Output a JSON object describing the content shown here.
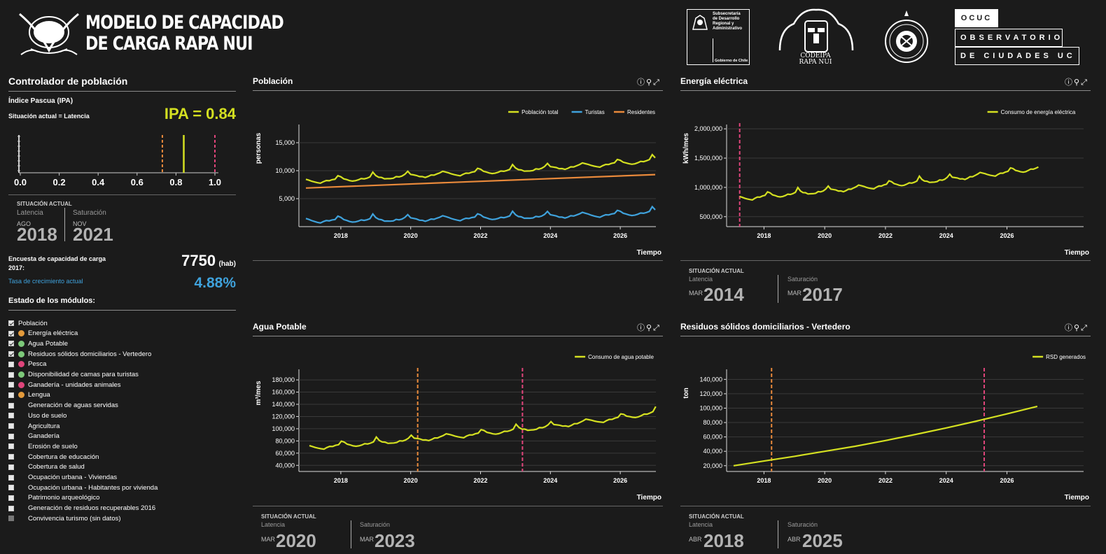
{
  "header": {
    "title_line1": "MODELO DE CAPACIDAD",
    "title_line2": "DE CARGA RAPA NUI",
    "logos": {
      "subsecretaria": [
        "Subsecretaría",
        "de Desarrollo",
        "Regional y",
        "Administrativo"
      ],
      "gobierno": "Gobierno de Chile",
      "codeipa": [
        "CODEIPA",
        "RAPA NUI"
      ],
      "ocuc": [
        "OCUC",
        "OBSERVATORIO",
        "DE CIUDADES UC"
      ]
    }
  },
  "controller": {
    "title": "Controlador de población",
    "ipa_title": "Índice Pascua (IPA)",
    "situacion": "Situación actual = Latencia",
    "ipa_value": "IPA = 0.84",
    "gauge": {
      "ticks": [
        "0.0",
        "0.2",
        "0.4",
        "0.6",
        "0.8",
        "1.0"
      ],
      "latencia": 0.73,
      "current": 0.84,
      "saturacion": 1.0
    },
    "status_label": "SITUACIÓN ACTUAL",
    "latencia_label": "Latencia",
    "latencia_month": "AGO",
    "latencia_year": "2018",
    "saturacion_label": "Saturación",
    "saturacion_month": "NOV",
    "saturacion_year": "2021",
    "encuesta_label": "Encuesta de capacidad de carga 2017:",
    "encuesta_value": "7750",
    "encuesta_unit": "(hab)",
    "tasa_label": "Tasa de crecimiento actual",
    "tasa_value": "4.88%",
    "modules_title": "Estado de los módulos:",
    "modules": [
      {
        "label": "Población",
        "checked": true,
        "dot": null,
        "indent": false
      },
      {
        "label": "Energía eléctrica",
        "checked": true,
        "dot": "#e39a3b",
        "indent": true
      },
      {
        "label": "Agua Potable",
        "checked": true,
        "dot": "#7dc97a",
        "indent": true
      },
      {
        "label": "Residuos sólidos domiciliarios - Vertedero",
        "checked": true,
        "dot": "#7dc97a",
        "indent": true
      },
      {
        "label": "Pesca",
        "checked": false,
        "dot": "#e0457b",
        "indent": true
      },
      {
        "label": "Disponibilidad de camas para turistas",
        "checked": false,
        "dot": "#7dc97a",
        "indent": false
      },
      {
        "label": "Ganadería - unidades animales",
        "checked": false,
        "dot": "#e0457b",
        "indent": true
      },
      {
        "label": "Lengua",
        "checked": false,
        "dot": "#e39a3b",
        "indent": true
      },
      {
        "label": "Generación de aguas servidas",
        "checked": false,
        "dot": null,
        "indent": true
      },
      {
        "label": "Uso de suelo",
        "checked": false,
        "dot": null,
        "indent": true
      },
      {
        "label": "Agricultura",
        "checked": false,
        "dot": null,
        "indent": true
      },
      {
        "label": "Ganadería",
        "checked": false,
        "dot": null,
        "indent": true
      },
      {
        "label": "Erosión de suelo",
        "checked": false,
        "dot": null,
        "indent": true
      },
      {
        "label": "Cobertura de educación",
        "checked": false,
        "dot": null,
        "indent": true
      },
      {
        "label": "Cobertura de salud",
        "checked": false,
        "dot": null,
        "indent": true
      },
      {
        "label": "Ocupación urbana - Viviendas",
        "checked": false,
        "dot": null,
        "indent": true
      },
      {
        "label": "Ocupación urbana - Habitantes por vivienda",
        "checked": false,
        "dot": null,
        "indent": true
      },
      {
        "label": "Patrimonio arqueológico",
        "checked": false,
        "dot": null,
        "indent": true
      },
      {
        "label": "Generación de residuos recuperables 2016",
        "checked": false,
        "dot": null,
        "indent": true
      },
      {
        "label": "Convivencia turismo (sin datos)",
        "checked": false,
        "dot": null,
        "indent": true,
        "disabled": true
      }
    ]
  },
  "colors": {
    "yellow": "#d4e021",
    "blue": "#3fa2dc",
    "orange": "#e8893b",
    "pink": "#e0457b",
    "bg": "#1b1b1b"
  },
  "panels": {
    "poblacion": {
      "title": "Población",
      "xlabel": "Tiempo"
    },
    "energia": {
      "title": "Energía eléctrica",
      "xlabel": "Tiempo",
      "status_label": "SITUACIÓN ACTUAL",
      "latencia_label": "Latencia",
      "latencia_month": "MAR",
      "latencia_year": "2014",
      "saturacion_label": "Saturación",
      "saturacion_month": "MAR",
      "saturacion_year": "2017"
    },
    "agua": {
      "title": "Agua Potable",
      "xlabel": "Tiempo",
      "status_label": "SITUACIÓN ACTUAL",
      "latencia_label": "Latencia",
      "latencia_month": "MAR",
      "latencia_year": "2020",
      "saturacion_label": "Saturación",
      "saturacion_month": "MAR",
      "saturacion_year": "2023"
    },
    "residuos": {
      "title": "Residuos sólidos domiciliarios - Vertedero",
      "xlabel": "Tiempo",
      "status_label": "SITUACIÓN ACTUAL",
      "latencia_label": "Latencia",
      "latencia_month": "ABR",
      "latencia_year": "2018",
      "saturacion_label": "Saturación",
      "saturacion_month": "ABR",
      "saturacion_year": "2025"
    }
  },
  "chart_data": [
    {
      "id": "poblacion",
      "type": "line",
      "ylabel": "personas",
      "xlabel": "Tiempo",
      "xlim": [
        2017,
        2027
      ],
      "ylim": [
        0,
        18000
      ],
      "x_ticks": [
        2018,
        2020,
        2022,
        2024,
        2026
      ],
      "y_ticks": [
        5000,
        10000,
        15000
      ],
      "y_tick_labels": [
        "5,000",
        "10,000",
        "15,000"
      ],
      "legend_position": "top-right",
      "series": [
        {
          "name": "Población total",
          "color": "#d4e021",
          "x": [
            2017,
            2018,
            2019,
            2020,
            2021,
            2022,
            2023,
            2024,
            2025,
            2026,
            2027
          ],
          "values": [
            8000,
            8300,
            8650,
            9000,
            9300,
            9650,
            10000,
            10400,
            10800,
            11250,
            11800
          ],
          "seasonal": 1
        },
        {
          "name": "Turistas",
          "color": "#3fa2dc",
          "x": [
            2017,
            2018,
            2019,
            2020,
            2021,
            2022,
            2023,
            2024,
            2025,
            2026,
            2027
          ],
          "values": [
            1000,
            1050,
            1150,
            1250,
            1350,
            1500,
            1650,
            1800,
            1950,
            2150,
            2500
          ],
          "seasonal": 1
        },
        {
          "name": "Residentes",
          "color": "#e8893b",
          "x": [
            2017,
            2027
          ],
          "values": [
            6900,
            9300
          ],
          "seasonal": 0
        }
      ],
      "vlines": []
    },
    {
      "id": "energia",
      "type": "line",
      "ylabel": "kWh/mes",
      "xlabel": "Tiempo",
      "xlim": [
        2017,
        2028.5
      ],
      "ylim": [
        330000,
        2050000
      ],
      "x_ticks": [
        2018,
        2020,
        2022,
        2024,
        2026
      ],
      "y_ticks": [
        500000,
        1000000,
        1500000,
        2000000
      ],
      "y_tick_labels": [
        "500,000",
        "1,000,000",
        "1,500,000",
        "2,000,000"
      ],
      "legend_position": "top-right",
      "series": [
        {
          "name": "Consumo de energía eléctrica",
          "color": "#d4e021",
          "x": [
            2017.2,
            2018,
            2019,
            2020,
            2021,
            2022,
            2023,
            2024,
            2025,
            2026,
            2027
          ],
          "values": [
            800000,
            840000,
            885000,
            930000,
            975000,
            1030000,
            1080000,
            1130000,
            1190000,
            1250000,
            1320000
          ],
          "seasonal": 1
        }
      ],
      "vlines": [
        {
          "x": 2017.2,
          "color": "#e0457b"
        }
      ]
    },
    {
      "id": "agua",
      "type": "line",
      "ylabel": "m³/mes",
      "xlabel": "Tiempo",
      "xlim": [
        2017,
        2027
      ],
      "ylim": [
        30000,
        195000
      ],
      "x_ticks": [
        2018,
        2020,
        2022,
        2024,
        2026
      ],
      "y_ticks": [
        40000,
        60000,
        80000,
        100000,
        120000,
        140000,
        160000,
        180000
      ],
      "y_tick_labels": [
        "40,000",
        "60,000",
        "80,000",
        "100,000",
        "120,000",
        "140,000",
        "160,000",
        "180,000"
      ],
      "legend_position": "top-right",
      "series": [
        {
          "name": "Consumo de agua potable",
          "color": "#d4e021",
          "x": [
            2017.1,
            2018,
            2019,
            2020,
            2021,
            2022,
            2023,
            2024,
            2025,
            2026,
            2027
          ],
          "values": [
            68000,
            72000,
            76000,
            81000,
            86000,
            91000,
            97000,
            103000,
            110000,
            117000,
            126000
          ],
          "seasonal": 1
        }
      ],
      "vlines": [
        {
          "x": 2020.2,
          "color": "#e8893b"
        },
        {
          "x": 2023.2,
          "color": "#e0457b"
        }
      ]
    },
    {
      "id": "residuos",
      "type": "line",
      "ylabel": "ton",
      "xlabel": "Tiempo",
      "xlim": [
        2017,
        2028.5
      ],
      "ylim": [
        12000,
        152000
      ],
      "x_ticks": [
        2018,
        2020,
        2022,
        2024,
        2026
      ],
      "y_ticks": [
        20000,
        40000,
        60000,
        80000,
        100000,
        120000,
        140000
      ],
      "y_tick_labels": [
        "20,000",
        "40,000",
        "60,000",
        "80,000",
        "100,000",
        "120,000",
        "140,000"
      ],
      "legend_position": "top-right",
      "series": [
        {
          "name": "RSD generados",
          "color": "#d4e021",
          "x": [
            2017,
            2018,
            2019,
            2020,
            2021,
            2022,
            2023,
            2024,
            2025,
            2026,
            2027
          ],
          "values": [
            20000,
            26500,
            33000,
            40000,
            47000,
            55000,
            63500,
            72500,
            82000,
            92000,
            102500
          ],
          "seasonal": 0
        }
      ],
      "vlines": [
        {
          "x": 2018.25,
          "color": "#e8893b"
        },
        {
          "x": 2025.25,
          "color": "#e0457b"
        }
      ]
    }
  ]
}
